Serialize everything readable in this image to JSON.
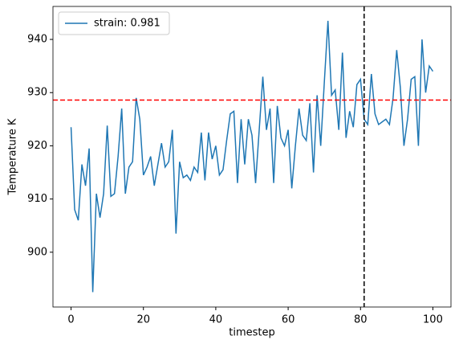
{
  "chart_data": {
    "type": "line",
    "xlabel": "timestep",
    "ylabel": "Temperature K",
    "x": [
      0,
      1,
      2,
      3,
      4,
      5,
      6,
      7,
      8,
      9,
      10,
      11,
      12,
      13,
      14,
      15,
      16,
      17,
      18,
      19,
      20,
      21,
      22,
      23,
      24,
      25,
      26,
      27,
      28,
      29,
      30,
      31,
      32,
      33,
      34,
      35,
      36,
      37,
      38,
      39,
      40,
      41,
      42,
      43,
      44,
      45,
      46,
      47,
      48,
      49,
      50,
      51,
      52,
      53,
      54,
      55,
      56,
      57,
      58,
      59,
      60,
      61,
      62,
      63,
      64,
      65,
      66,
      67,
      68,
      69,
      70,
      71,
      72,
      73,
      74,
      75,
      76,
      77,
      78,
      79,
      80,
      81,
      82,
      83,
      84,
      85,
      86,
      87,
      88,
      89,
      90,
      91,
      92,
      93,
      94,
      95,
      96,
      97,
      98,
      99,
      100
    ],
    "series": [
      {
        "name": "strain: 0.981",
        "color": "#1f77b4",
        "values": [
          923.5,
          908,
          906,
          916.5,
          912.5,
          919.5,
          892.5,
          911,
          906.5,
          911,
          923.8,
          910.5,
          911,
          918,
          927,
          911,
          916,
          917,
          929,
          925,
          914.5,
          916,
          918,
          912.5,
          916.5,
          920.5,
          916,
          917,
          923,
          903.5,
          917,
          914,
          914.5,
          913.5,
          916,
          915,
          922.5,
          913.5,
          922.5,
          917.5,
          920,
          914.5,
          915.5,
          921,
          926,
          926.5,
          913,
          925,
          916.5,
          925,
          922,
          913,
          923,
          933,
          923,
          927,
          913,
          927.5,
          921.5,
          920,
          923,
          912,
          920,
          927,
          922,
          921,
          928,
          915,
          929.5,
          920,
          932,
          943.5,
          929.5,
          930.5,
          923,
          937.5,
          921.5,
          926.5,
          923.5,
          931.5,
          932.5,
          925,
          924,
          933.5,
          926,
          924,
          924.5,
          925,
          924,
          929,
          938,
          931,
          920,
          925,
          932.5,
          933,
          920,
          940,
          930,
          935,
          934
        ]
      }
    ],
    "hline": {
      "value": 928.6,
      "color": "#ff0000"
    },
    "vline": {
      "value": 81,
      "color": "#000000"
    },
    "xlim": [
      -5,
      105
    ],
    "ylim": [
      889.7,
      946.2
    ],
    "xticks": [
      0,
      20,
      40,
      60,
      80,
      100
    ],
    "yticks": [
      900,
      910,
      920,
      930,
      940
    ],
    "legend": "upper-left"
  }
}
